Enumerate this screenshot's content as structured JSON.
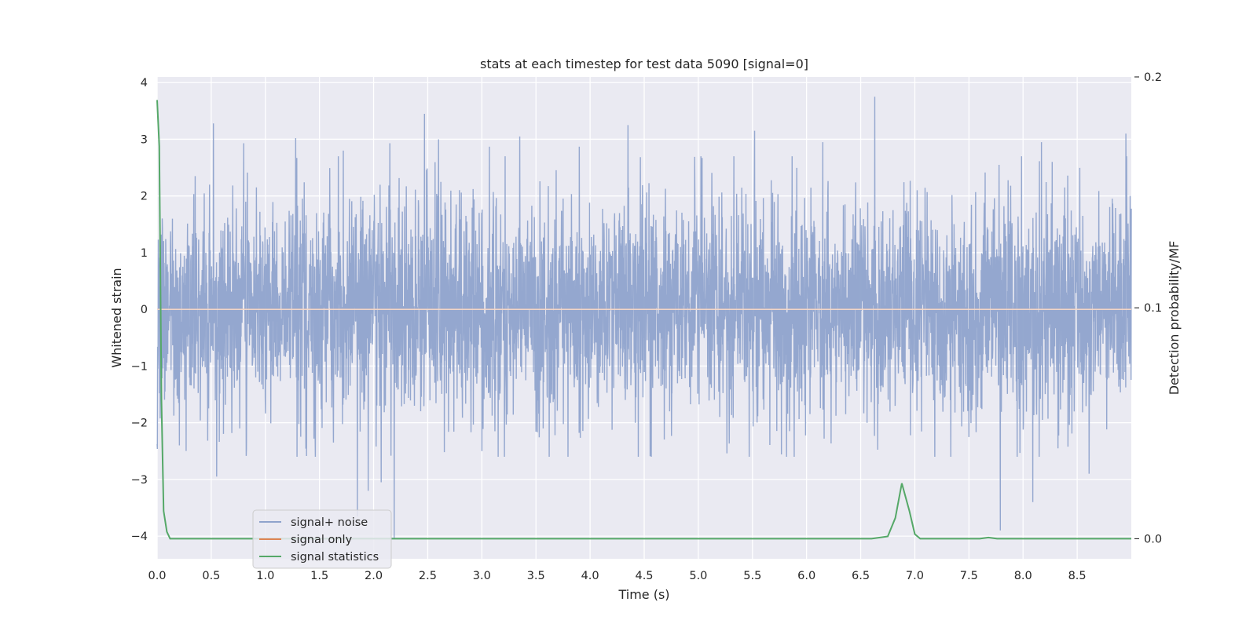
{
  "chart_data": {
    "type": "line",
    "title": "stats at each timestep for test data 5090 [signal=0]",
    "xlabel": "Time (s)",
    "ylabel_left": "Whitened strain",
    "ylabel_right": "Detection probability/MF",
    "xlim": [
      0.0,
      9.0
    ],
    "ylim_left": [
      -4.4,
      4.1
    ],
    "ylim_right": [
      -0.0087,
      0.2
    ],
    "x_ticks": [
      0.0,
      0.5,
      1.0,
      1.5,
      2.0,
      2.5,
      3.0,
      3.5,
      4.0,
      4.5,
      5.0,
      5.5,
      6.0,
      6.5,
      7.0,
      7.5,
      8.0,
      8.5
    ],
    "x_tick_labels": [
      "0.0",
      "0.5",
      "1.0",
      "1.5",
      "2.0",
      "2.5",
      "3.0",
      "3.5",
      "4.0",
      "4.5",
      "5.0",
      "5.5",
      "6.0",
      "6.5",
      "7.0",
      "7.5",
      "8.0",
      "8.5"
    ],
    "y_ticks_left": [
      -4,
      -3,
      -2,
      -1,
      0,
      1,
      2,
      3,
      4
    ],
    "y_tick_labels_left": [
      "−4",
      "−3",
      "−2",
      "−1",
      "0",
      "1",
      "2",
      "3",
      "4"
    ],
    "y_ticks_right": [
      0.0,
      0.1,
      0.2
    ],
    "y_tick_labels_right": [
      "0.0",
      "0.1",
      "0.2"
    ],
    "grid": true,
    "legend_position": "lower-left",
    "series": [
      {
        "name": "signal+ noise",
        "axis": "left",
        "color": "#8fa3cc",
        "description_points": [
          [
            0.52,
            3.28
          ],
          [
            0.8,
            2.93
          ],
          [
            1.28,
            3.02
          ],
          [
            1.72,
            2.8
          ],
          [
            2.15,
            2.93
          ],
          [
            2.47,
            3.45
          ],
          [
            2.6,
            3.0
          ],
          [
            3.07,
            2.87
          ],
          [
            3.35,
            3.05
          ],
          [
            3.9,
            2.87
          ],
          [
            4.35,
            3.25
          ],
          [
            5.52,
            3.15
          ],
          [
            6.15,
            2.95
          ],
          [
            6.63,
            3.75
          ],
          [
            8.17,
            2.95
          ],
          [
            8.95,
            3.1
          ],
          [
            0.55,
            -2.95
          ],
          [
            1.85,
            -3.65
          ],
          [
            1.95,
            -3.2
          ],
          [
            2.07,
            -3.05
          ],
          [
            2.19,
            -4.05
          ],
          [
            7.79,
            -3.9
          ],
          [
            8.09,
            -3.4
          ],
          [
            8.61,
            -2.9
          ]
        ]
      },
      {
        "name": "signal only",
        "axis": "left",
        "color": "#dd8452",
        "constant_value": 0.0
      },
      {
        "name": "signal statistics",
        "axis": "right",
        "color": "#55a868",
        "x": [
          0.0,
          0.02,
          0.04,
          0.06,
          0.09,
          0.12,
          6.6,
          6.75,
          6.82,
          6.88,
          6.95,
          7.0,
          7.05,
          7.6,
          7.68,
          7.76,
          9.0
        ],
        "y": [
          0.19,
          0.17,
          0.06,
          0.012,
          0.003,
          0.0,
          0.0,
          0.001,
          0.009,
          0.024,
          0.012,
          0.002,
          0.0,
          0.0,
          0.0005,
          0.0,
          0.0
        ]
      }
    ]
  }
}
